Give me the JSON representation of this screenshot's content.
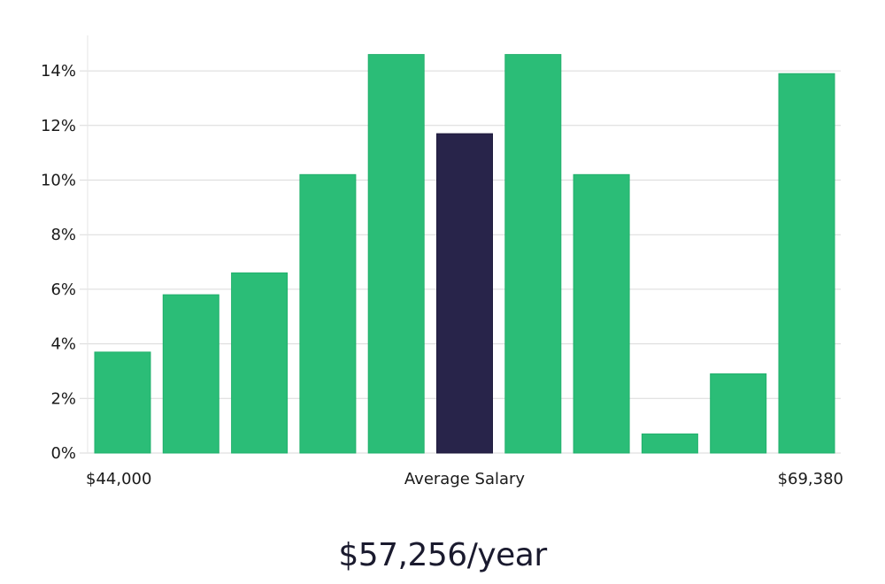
{
  "chart_data": {
    "type": "bar",
    "title": "",
    "xlabel": "Average Salary",
    "ylabel": "",
    "x_range_labels": {
      "min": "$44,000",
      "max": "$69,380"
    },
    "ylim": [
      0,
      15.3
    ],
    "yticks": [
      0,
      2,
      4,
      6,
      8,
      10,
      12,
      14
    ],
    "ytick_suffix": "%",
    "grid": true,
    "values": [
      3.7,
      5.8,
      6.6,
      10.2,
      14.6,
      11.7,
      14.6,
      10.2,
      0.7,
      2.9,
      13.9
    ],
    "highlight_index": 5,
    "colors": {
      "bar": "#2bbd77",
      "bar_edge": "#22b06c",
      "highlight": "#28244a",
      "grid": "#dadada",
      "axis": "#e6e6e6"
    }
  },
  "footer": {
    "salary": "$57,256/year"
  }
}
